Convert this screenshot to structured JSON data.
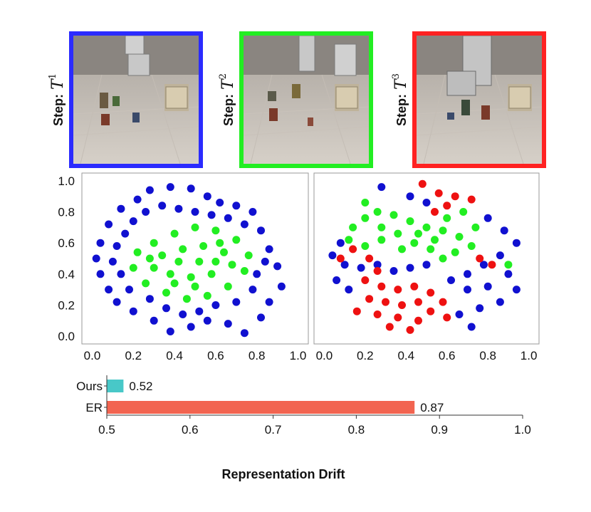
{
  "panels": [
    {
      "label": "Step:",
      "symbol": "T",
      "superscript": "1",
      "border_color": "#2b2bff"
    },
    {
      "label": "Step:",
      "symbol": "T",
      "superscript": "2",
      "border_color": "#22ee22"
    },
    {
      "label": "Step:",
      "symbol": "T",
      "superscript": "3",
      "border_color": "#ff2222"
    }
  ],
  "scatter_colors": {
    "blue": "#1010d0",
    "green": "#22ee22",
    "red": "#ee1111"
  },
  "chart_data": [
    {
      "type": "scatter",
      "title": "",
      "xlabel": "",
      "ylabel": "",
      "xlim": [
        -0.05,
        1.05
      ],
      "ylim": [
        -0.05,
        1.05
      ],
      "x_ticks": [
        "0.0",
        "0.2",
        "0.4",
        "0.6",
        "0.8",
        "1.0"
      ],
      "y_ticks": [
        "0.0",
        "0.2",
        "0.4",
        "0.6",
        "0.8",
        "1.0"
      ],
      "grid": false,
      "series": [
        {
          "color": "#1010d0",
          "points": [
            [
              0.38,
              0.96
            ],
            [
              0.28,
              0.94
            ],
            [
              0.48,
              0.95
            ],
            [
              0.56,
              0.9
            ],
            [
              0.62,
              0.86
            ],
            [
              0.7,
              0.84
            ],
            [
              0.78,
              0.8
            ],
            [
              0.22,
              0.88
            ],
            [
              0.14,
              0.82
            ],
            [
              0.08,
              0.72
            ],
            [
              0.04,
              0.6
            ],
            [
              0.02,
              0.5
            ],
            [
              0.04,
              0.4
            ],
            [
              0.08,
              0.3
            ],
            [
              0.12,
              0.22
            ],
            [
              0.2,
              0.16
            ],
            [
              0.3,
              0.1
            ],
            [
              0.38,
              0.03
            ],
            [
              0.48,
              0.06
            ],
            [
              0.56,
              0.1
            ],
            [
              0.66,
              0.08
            ],
            [
              0.74,
              0.02
            ],
            [
              0.82,
              0.12
            ],
            [
              0.86,
              0.22
            ],
            [
              0.92,
              0.32
            ],
            [
              0.9,
              0.45
            ],
            [
              0.86,
              0.56
            ],
            [
              0.82,
              0.68
            ],
            [
              0.74,
              0.72
            ],
            [
              0.66,
              0.76
            ],
            [
              0.58,
              0.78
            ],
            [
              0.5,
              0.8
            ],
            [
              0.42,
              0.82
            ],
            [
              0.34,
              0.84
            ],
            [
              0.26,
              0.8
            ],
            [
              0.2,
              0.74
            ],
            [
              0.16,
              0.66
            ],
            [
              0.12,
              0.58
            ],
            [
              0.1,
              0.48
            ],
            [
              0.14,
              0.4
            ],
            [
              0.18,
              0.3
            ],
            [
              0.28,
              0.24
            ],
            [
              0.36,
              0.18
            ],
            [
              0.44,
              0.14
            ],
            [
              0.52,
              0.16
            ],
            [
              0.6,
              0.2
            ],
            [
              0.7,
              0.22
            ],
            [
              0.78,
              0.3
            ],
            [
              0.8,
              0.4
            ],
            [
              0.84,
              0.48
            ]
          ]
        },
        {
          "color": "#22ee22",
          "points": [
            [
              0.3,
              0.6
            ],
            [
              0.4,
              0.66
            ],
            [
              0.5,
              0.7
            ],
            [
              0.6,
              0.68
            ],
            [
              0.7,
              0.62
            ],
            [
              0.76,
              0.52
            ],
            [
              0.74,
              0.42
            ],
            [
              0.66,
              0.32
            ],
            [
              0.56,
              0.26
            ],
            [
              0.46,
              0.24
            ],
            [
              0.36,
              0.28
            ],
            [
              0.26,
              0.34
            ],
            [
              0.2,
              0.44
            ],
            [
              0.22,
              0.54
            ],
            [
              0.34,
              0.52
            ],
            [
              0.44,
              0.56
            ],
            [
              0.54,
              0.58
            ],
            [
              0.64,
              0.54
            ],
            [
              0.68,
              0.46
            ],
            [
              0.58,
              0.4
            ],
            [
              0.48,
              0.38
            ],
            [
              0.38,
              0.4
            ],
            [
              0.3,
              0.44
            ],
            [
              0.42,
              0.48
            ],
            [
              0.52,
              0.48
            ],
            [
              0.6,
              0.48
            ],
            [
              0.5,
              0.32
            ],
            [
              0.4,
              0.34
            ],
            [
              0.62,
              0.6
            ],
            [
              0.28,
              0.5
            ]
          ]
        }
      ]
    },
    {
      "type": "scatter",
      "title": "",
      "xlabel": "",
      "ylabel": "",
      "xlim": [
        -0.05,
        1.05
      ],
      "ylim": [
        -0.05,
        1.05
      ],
      "x_ticks": [
        "0.0",
        "0.2",
        "0.4",
        "0.6",
        "0.8",
        "1.0"
      ],
      "y_ticks": [],
      "grid": false,
      "series": [
        {
          "color": "#1010d0",
          "points": [
            [
              0.28,
              0.96
            ],
            [
              0.42,
              0.9
            ],
            [
              0.5,
              0.86
            ],
            [
              0.08,
              0.6
            ],
            [
              0.04,
              0.52
            ],
            [
              0.1,
              0.46
            ],
            [
              0.18,
              0.44
            ],
            [
              0.26,
              0.46
            ],
            [
              0.34,
              0.42
            ],
            [
              0.42,
              0.44
            ],
            [
              0.5,
              0.46
            ],
            [
              0.06,
              0.36
            ],
            [
              0.12,
              0.3
            ],
            [
              0.8,
              0.76
            ],
            [
              0.88,
              0.68
            ],
            [
              0.94,
              0.6
            ],
            [
              0.86,
              0.52
            ],
            [
              0.78,
              0.46
            ],
            [
              0.7,
              0.4
            ],
            [
              0.62,
              0.36
            ],
            [
              0.7,
              0.3
            ],
            [
              0.8,
              0.32
            ],
            [
              0.9,
              0.4
            ],
            [
              0.94,
              0.3
            ],
            [
              0.86,
              0.22
            ],
            [
              0.76,
              0.18
            ],
            [
              0.66,
              0.14
            ],
            [
              0.72,
              0.06
            ]
          ]
        },
        {
          "color": "#22ee22",
          "points": [
            [
              0.2,
              0.86
            ],
            [
              0.26,
              0.8
            ],
            [
              0.34,
              0.78
            ],
            [
              0.42,
              0.74
            ],
            [
              0.5,
              0.7
            ],
            [
              0.58,
              0.68
            ],
            [
              0.66,
              0.64
            ],
            [
              0.72,
              0.58
            ],
            [
              0.64,
              0.54
            ],
            [
              0.58,
              0.5
            ],
            [
              0.52,
              0.56
            ],
            [
              0.44,
              0.6
            ],
            [
              0.36,
              0.66
            ],
            [
              0.28,
              0.7
            ],
            [
              0.2,
              0.76
            ],
            [
              0.14,
              0.7
            ],
            [
              0.12,
              0.62
            ],
            [
              0.2,
              0.58
            ],
            [
              0.6,
              0.76
            ],
            [
              0.68,
              0.8
            ],
            [
              0.74,
              0.7
            ],
            [
              0.46,
              0.66
            ],
            [
              0.38,
              0.56
            ],
            [
              0.54,
              0.62
            ],
            [
              0.28,
              0.62
            ],
            [
              0.9,
              0.46
            ]
          ]
        },
        {
          "color": "#ee1111",
          "points": [
            [
              0.48,
              0.98
            ],
            [
              0.56,
              0.92
            ],
            [
              0.64,
              0.9
            ],
            [
              0.72,
              0.88
            ],
            [
              0.6,
              0.84
            ],
            [
              0.54,
              0.8
            ],
            [
              0.76,
              0.5
            ],
            [
              0.82,
              0.46
            ],
            [
              0.14,
              0.56
            ],
            [
              0.08,
              0.5
            ],
            [
              0.22,
              0.5
            ],
            [
              0.2,
              0.36
            ],
            [
              0.28,
              0.32
            ],
            [
              0.36,
              0.3
            ],
            [
              0.44,
              0.32
            ],
            [
              0.52,
              0.28
            ],
            [
              0.46,
              0.22
            ],
            [
              0.38,
              0.2
            ],
            [
              0.3,
              0.22
            ],
            [
              0.22,
              0.24
            ],
            [
              0.16,
              0.16
            ],
            [
              0.26,
              0.14
            ],
            [
              0.36,
              0.12
            ],
            [
              0.46,
              0.1
            ],
            [
              0.52,
              0.16
            ],
            [
              0.58,
              0.22
            ],
            [
              0.42,
              0.04
            ],
            [
              0.32,
              0.06
            ],
            [
              0.6,
              0.12
            ],
            [
              0.26,
              0.42
            ]
          ]
        }
      ]
    },
    {
      "type": "bar",
      "orientation": "horizontal",
      "categories": [
        "Ours",
        "ER"
      ],
      "values": [
        0.52,
        0.87
      ],
      "value_labels": [
        "0.52",
        "0.87"
      ],
      "colors": [
        "#48c8c8",
        "#f26450"
      ],
      "xlim": [
        0.5,
        1.0
      ],
      "x_ticks": [
        "0.5",
        "0.6",
        "0.7",
        "0.8",
        "0.9",
        "1.0"
      ],
      "xlabel": "Representation Drift",
      "ylabel": "",
      "title": ""
    }
  ]
}
